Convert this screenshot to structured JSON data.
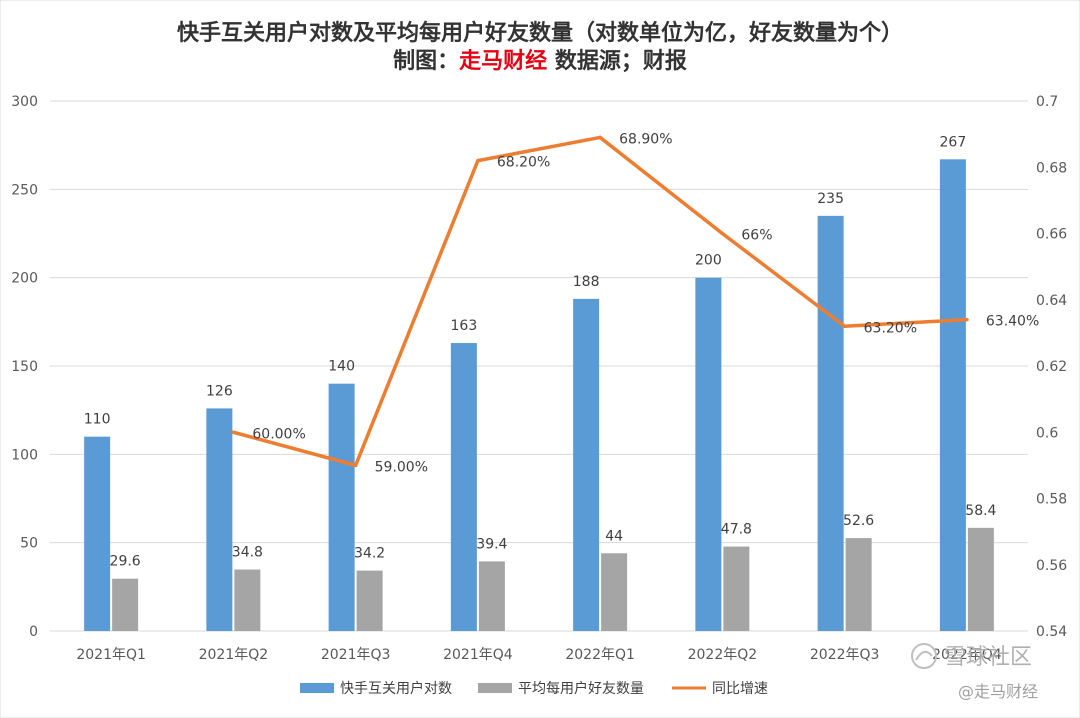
{
  "chart_data": {
    "type": "bar",
    "title": "快手互关用户对数及平均每用户好友数量（对数单位为亿，好友数量为个）",
    "subtitle_prefix": "制图：",
    "subtitle_brand": "走马财经",
    "subtitle_suffix": " 数据源；财报",
    "categories": [
      "2021年Q1",
      "2021年Q2",
      "2021年Q3",
      "2021年Q4",
      "2022年Q1",
      "2022年Q2",
      "2022年Q3",
      "2022年Q4"
    ],
    "series": [
      {
        "name": "快手互关用户对数",
        "type": "bar",
        "axis": "left",
        "color": "#5b9bd5",
        "values": [
          110,
          126,
          140,
          163,
          188,
          200,
          235,
          267
        ],
        "labels": [
          "110",
          "126",
          "140",
          "163",
          "188",
          "200",
          "235",
          "267"
        ]
      },
      {
        "name": "平均每用户好友数量",
        "type": "bar",
        "axis": "left",
        "color": "#a5a5a5",
        "values": [
          29.6,
          34.8,
          34.2,
          39.4,
          44,
          47.8,
          52.6,
          58.4
        ],
        "labels": [
          "29.6",
          "34.8",
          "34.2",
          "39.4",
          "44",
          "47.8",
          "52.6",
          "58.4"
        ]
      },
      {
        "name": "同比增速",
        "type": "line",
        "axis": "right",
        "color": "#ed7d31",
        "values": [
          null,
          0.6,
          0.59,
          0.682,
          0.689,
          0.66,
          0.632,
          0.634
        ],
        "labels": [
          "",
          "60.00%",
          "59.00%",
          "68.20%",
          "68.90%",
          "66%",
          "63.20%",
          "63.40%"
        ]
      }
    ],
    "ylim_left": [
      0,
      300
    ],
    "yticks_left": [
      0,
      50,
      100,
      150,
      200,
      250,
      300
    ],
    "ylim_right": [
      0.54,
      0.7
    ],
    "yticks_right": [
      "0.54",
      "0.56",
      "0.58",
      "0.6",
      "0.62",
      "0.64",
      "0.66",
      "0.68",
      "0.7"
    ],
    "grid": true,
    "legend_position": "bottom"
  },
  "watermark": {
    "main": "雪球社区",
    "sub": "@走马财经"
  }
}
